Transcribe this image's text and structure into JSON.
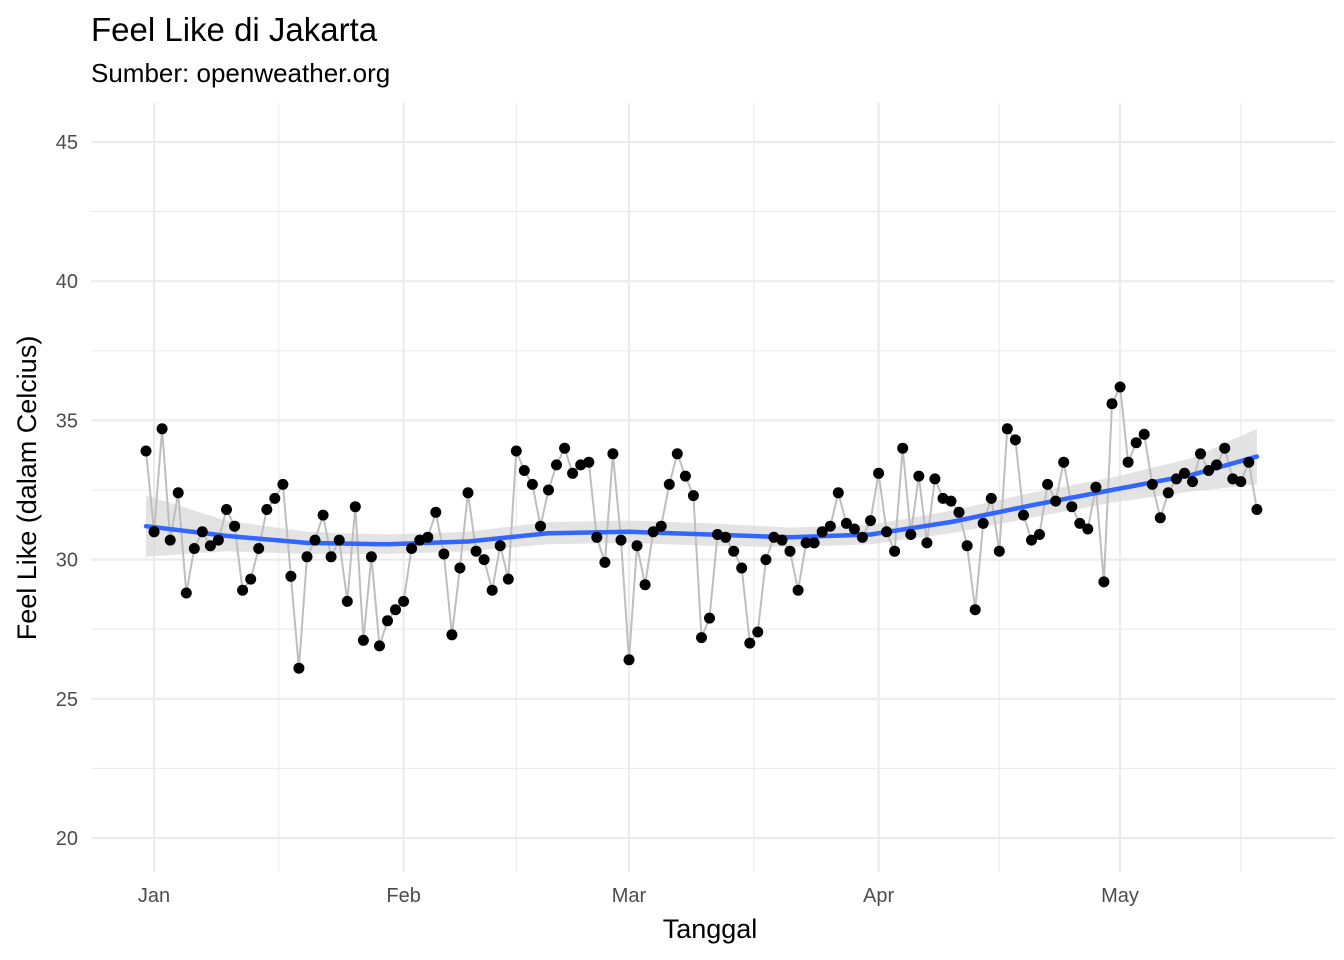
{
  "chart_data": {
    "type": "line",
    "title": "Feel Like di Jakarta",
    "subtitle": "Sumber: openweather.org",
    "xlabel": "Tanggal",
    "ylabel": "Feel Like (dalam Celcius)",
    "ylim": [
      19,
      46
    ],
    "yticks": [
      20,
      25,
      30,
      35,
      40,
      45
    ],
    "x_start_date": "2020-12-31",
    "x_end_date": "2021-05-20",
    "xticks": [
      {
        "label": "Jan",
        "date": "2021-01-01"
      },
      {
        "label": "Feb",
        "date": "2021-02-01"
      },
      {
        "label": "Mar",
        "date": "2021-03-01"
      },
      {
        "label": "Apr",
        "date": "2021-04-01"
      },
      {
        "label": "May",
        "date": "2021-05-01"
      }
    ],
    "grid": true,
    "colors": {
      "points": "#000000",
      "line": "#bebebe",
      "smooth": "#3366ff",
      "band": "#d9d9d9"
    },
    "series": [
      {
        "values": [
          33.9,
          31.0,
          34.7,
          30.7,
          32.4,
          28.8,
          30.4,
          31.0,
          30.5,
          30.7,
          31.8,
          31.2,
          28.9,
          29.3,
          30.4,
          31.8,
          32.2,
          32.7,
          29.4,
          26.1,
          30.1,
          30.7,
          31.6,
          30.1,
          30.7,
          28.5,
          31.9,
          27.1,
          30.1,
          26.9,
          27.8,
          28.2,
          28.5,
          30.4,
          30.7,
          30.8,
          31.7,
          30.2,
          27.3,
          29.7,
          32.4,
          30.3,
          30.0,
          28.9,
          30.5,
          29.3,
          33.9,
          33.2,
          32.7,
          31.2,
          32.5,
          33.4,
          34.0,
          33.1,
          33.4,
          33.5,
          30.8,
          29.9,
          33.8,
          30.7,
          26.4,
          30.5,
          29.1,
          31.0,
          31.2,
          32.7,
          33.8,
          33.0,
          32.3,
          27.2,
          27.9,
          30.9,
          30.8,
          30.3,
          29.7,
          27.0,
          27.4,
          30.0,
          30.8,
          30.7,
          30.3,
          28.9,
          30.6,
          30.6,
          31.0,
          31.2,
          32.4,
          31.3,
          31.1,
          30.8,
          31.4,
          33.1,
          31.0,
          30.3,
          34.0,
          30.9,
          33.0,
          30.6,
          32.9,
          32.2,
          32.1,
          31.7,
          30.5,
          28.2,
          31.3,
          32.2,
          30.3,
          34.7,
          34.3,
          31.6,
          30.7,
          30.9,
          32.7,
          32.1,
          33.5,
          31.9,
          31.3,
          31.1,
          32.6,
          29.2,
          35.6,
          36.2,
          33.5,
          34.2,
          34.5,
          32.7,
          31.5,
          32.4,
          32.9,
          33.1,
          32.8,
          33.8,
          33.2,
          33.4,
          34.0,
          32.9,
          32.8,
          33.5,
          31.8
        ]
      }
    ],
    "smooth": {
      "x": [
        0,
        10,
        20,
        30,
        40,
        50,
        60,
        70,
        80,
        90,
        100,
        110,
        120,
        130,
        138
      ],
      "y": [
        31.2,
        30.85,
        30.6,
        30.55,
        30.65,
        30.95,
        31.0,
        30.9,
        30.8,
        30.9,
        31.35,
        31.95,
        32.5,
        33.05,
        33.7
      ],
      "lower": [
        30.1,
        30.3,
        30.2,
        30.2,
        30.3,
        30.55,
        30.6,
        30.5,
        30.45,
        30.55,
        30.95,
        31.5,
        32.05,
        32.45,
        32.7
      ],
      "upper": [
        32.3,
        31.4,
        31.0,
        30.9,
        31.0,
        31.35,
        31.4,
        31.3,
        31.15,
        31.25,
        31.75,
        32.4,
        32.95,
        33.65,
        34.7
      ]
    }
  }
}
